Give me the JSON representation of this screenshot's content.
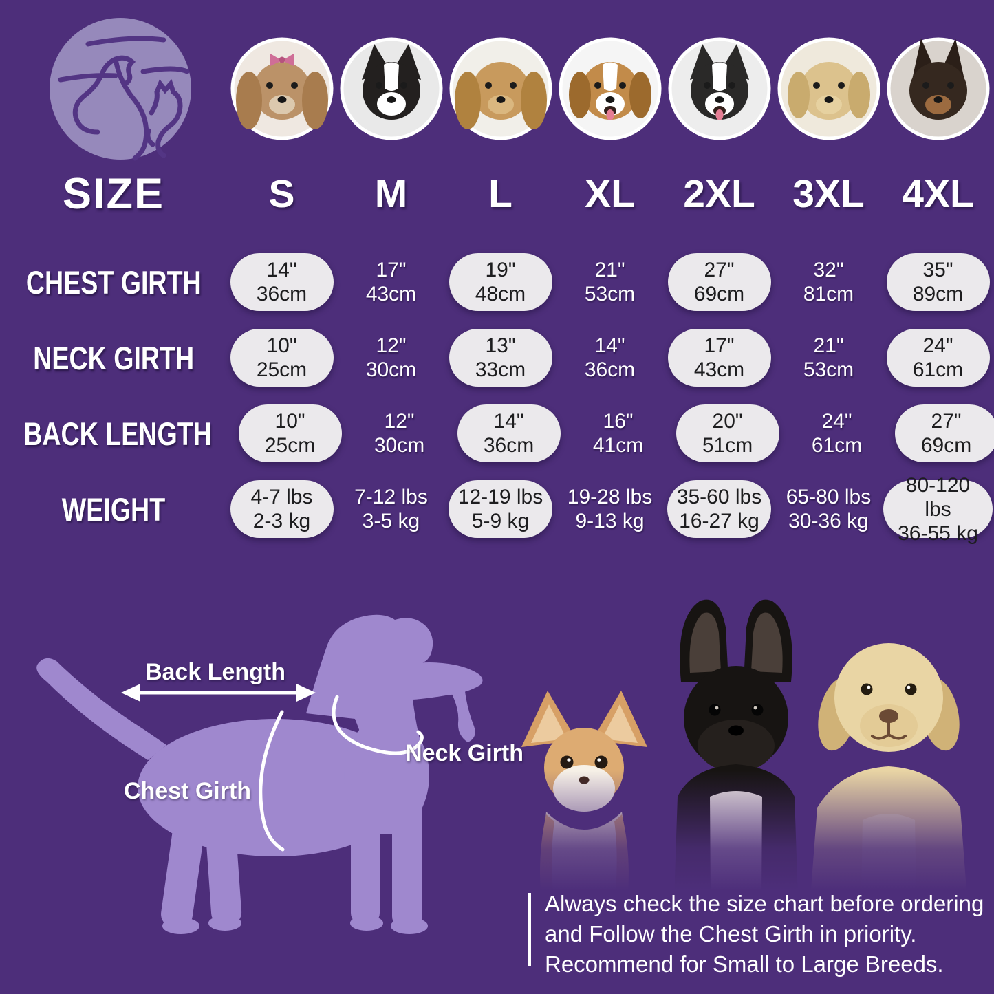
{
  "colors": {
    "background": "#4d2e7a",
    "pill": "#ebe9ec",
    "pill_text": "#1d1d1f",
    "silhouette": "#9f88ce",
    "logo_circle": "#9689bb",
    "logo_line": "#533584",
    "white": "#ffffff"
  },
  "breeds": [
    {
      "name": "shih-tzu",
      "bg": "#efe8e1",
      "head": "#bb9268",
      "ears": "long",
      "ear": "#a87c4e",
      "muzzle": "#dcc9ae",
      "bow": true
    },
    {
      "name": "boston-terrier",
      "bg": "#e9e9e9",
      "head": "#23201f",
      "ears": "up",
      "ear": "#23201f",
      "blaze": true
    },
    {
      "name": "cocker-spaniel",
      "bg": "#f1efe9",
      "head": "#c89a5d",
      "ears": "long",
      "ear": "#b0823f",
      "muzzle": "#dab77f"
    },
    {
      "name": "beagle",
      "bg": "#f5f5f5",
      "head": "#c28b4a",
      "ears": "floppy",
      "ear": "#9c6a2d",
      "blaze": true,
      "tongue": true
    },
    {
      "name": "border-collie",
      "bg": "#ededed",
      "head": "#2a2928",
      "ears": "up",
      "ear": "#2a2928",
      "blaze": true,
      "tongue": true
    },
    {
      "name": "labrador",
      "bg": "#efe9dc",
      "head": "#dcc28d",
      "ears": "floppy",
      "ear": "#c9ab6e",
      "muzzle": "#e6d1a0"
    },
    {
      "name": "doberman",
      "bg": "#d9d3cd",
      "head": "#35281f",
      "ears": "tall",
      "ear": "#2b1f18",
      "muzzle": "#9c6b40"
    }
  ],
  "size_chart": {
    "size_label": "SIZE",
    "sizes": [
      "S",
      "M",
      "L",
      "XL",
      "2XL",
      "3XL",
      "4XL"
    ],
    "rows": [
      {
        "label": "CHEST GIRTH",
        "values": [
          {
            "line1": "14\"",
            "line2": "36cm"
          },
          {
            "line1": "17\"",
            "line2": "43cm"
          },
          {
            "line1": "19\"",
            "line2": "48cm"
          },
          {
            "line1": "21\"",
            "line2": "53cm"
          },
          {
            "line1": "27\"",
            "line2": "69cm"
          },
          {
            "line1": "32\"",
            "line2": "81cm"
          },
          {
            "line1": "35\"",
            "line2": "89cm"
          }
        ]
      },
      {
        "label": "NECK GIRTH",
        "values": [
          {
            "line1": "10\"",
            "line2": "25cm"
          },
          {
            "line1": "12\"",
            "line2": "30cm"
          },
          {
            "line1": "13\"",
            "line2": "33cm"
          },
          {
            "line1": "14\"",
            "line2": "36cm"
          },
          {
            "line1": "17\"",
            "line2": "43cm"
          },
          {
            "line1": "21\"",
            "line2": "53cm"
          },
          {
            "line1": "24\"",
            "line2": "61cm"
          }
        ]
      },
      {
        "label": "BACK LENGTH",
        "values": [
          {
            "line1": "10\"",
            "line2": "25cm"
          },
          {
            "line1": "12\"",
            "line2": "30cm"
          },
          {
            "line1": "14\"",
            "line2": "36cm"
          },
          {
            "line1": "16\"",
            "line2": "41cm"
          },
          {
            "line1": "20\"",
            "line2": "51cm"
          },
          {
            "line1": "24\"",
            "line2": "61cm"
          },
          {
            "line1": "27\"",
            "line2": "69cm"
          }
        ]
      },
      {
        "label": "WEIGHT",
        "values": [
          {
            "line1": "4-7 lbs",
            "line2": "2-3 kg"
          },
          {
            "line1": "7-12 lbs",
            "line2": "3-5 kg"
          },
          {
            "line1": "12-19 lbs",
            "line2": "5-9 kg"
          },
          {
            "line1": "19-28 lbs",
            "line2": "9-13 kg"
          },
          {
            "line1": "35-60 lbs",
            "line2": "16-27 kg"
          },
          {
            "line1": "65-80 lbs",
            "line2": "30-36 kg"
          },
          {
            "line1": "80-120 lbs",
            "line2": "36-55 kg"
          }
        ]
      }
    ]
  },
  "diagram": {
    "back_length_label": "Back Length",
    "neck_girth_label": "Neck Girth",
    "chest_girth_label": "Chest Girth"
  },
  "note": {
    "lines": [
      "Always check the size chart before ordering",
      "and Follow the Chest Girth in priority.",
      "Recommend for Small to Large Breeds."
    ]
  }
}
